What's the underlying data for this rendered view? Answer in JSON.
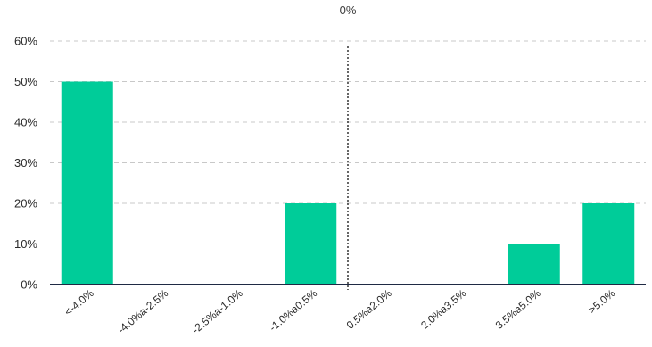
{
  "chart_data": {
    "type": "bar",
    "categories": [
      "<-4.0%",
      "-4.0%a-2.5%",
      "-2.5%a-1.0%",
      "-1.0%a0.5%",
      "0.5%a2.0%",
      "2.0%a3.5%",
      "3.5%a5.0%",
      ">5.0%"
    ],
    "values": [
      50,
      0,
      0,
      20,
      0,
      0,
      10,
      20
    ],
    "y_ticks": [
      "0%",
      "10%",
      "20%",
      "30%",
      "40%",
      "50%",
      "60%"
    ],
    "ylim": [
      0,
      60
    ],
    "grid": true,
    "grid_style": "dashed",
    "reference_line": {
      "label": "0%",
      "position": "between -1.0%a0.5% and 0.5%a2.0%",
      "style": "dotted"
    },
    "colors": {
      "bar": "#00cc99",
      "axis": "#1f2a44",
      "grid": "#c8c8c8",
      "reference": "#333333"
    }
  }
}
